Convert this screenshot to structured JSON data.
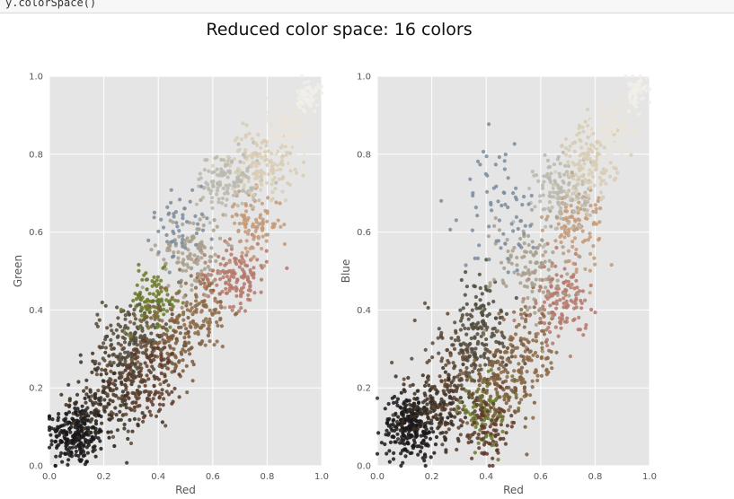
{
  "code_cell": {
    "text": "y.colorSpace()"
  },
  "figure_title": "Reduced color space: 16 colors",
  "palette": [
    "#1a1818",
    "#3a2e22",
    "#5d4733",
    "#4f4b3c",
    "#6b7a2a",
    "#7a5a3c",
    "#8b6a45",
    "#5f3a2a",
    "#b5786a",
    "#c49a78",
    "#a89f8c",
    "#bab8ae",
    "#d8ccb4",
    "#ebe5da",
    "#f2eee9",
    "#7a8c9c"
  ],
  "chart_data": [
    {
      "type": "scatter",
      "title": "",
      "xlabel": "Red",
      "ylabel": "Green",
      "xlim": [
        0.0,
        1.0
      ],
      "ylim": [
        0.0,
        1.0
      ],
      "xticks": [
        "0.0",
        "0.2",
        "0.4",
        "0.6",
        "0.8",
        "1.0"
      ],
      "yticks": [
        "0.0",
        "0.2",
        "0.4",
        "0.6",
        "0.8",
        "1.0"
      ],
      "grid": true,
      "clusters": [
        {
          "color": "#1a1818",
          "cx": 0.1,
          "cy": 0.08,
          "sx": 0.05,
          "sy": 0.04,
          "n": 260
        },
        {
          "color": "#3a2e22",
          "cx": 0.22,
          "cy": 0.18,
          "sx": 0.07,
          "sy": 0.06,
          "n": 170
        },
        {
          "color": "#5d4733",
          "cx": 0.3,
          "cy": 0.25,
          "sx": 0.07,
          "sy": 0.07,
          "n": 140
        },
        {
          "color": "#4f4b3c",
          "cx": 0.32,
          "cy": 0.32,
          "sx": 0.06,
          "sy": 0.06,
          "n": 130
        },
        {
          "color": "#6b7a2a",
          "cx": 0.38,
          "cy": 0.42,
          "sx": 0.05,
          "sy": 0.04,
          "n": 110
        },
        {
          "color": "#7a5a3c",
          "cx": 0.45,
          "cy": 0.32,
          "sx": 0.06,
          "sy": 0.05,
          "n": 120
        },
        {
          "color": "#8b6a45",
          "cx": 0.55,
          "cy": 0.4,
          "sx": 0.06,
          "sy": 0.05,
          "n": 110
        },
        {
          "color": "#5f3a2a",
          "cx": 0.38,
          "cy": 0.22,
          "sx": 0.06,
          "sy": 0.05,
          "n": 100
        },
        {
          "color": "#b5786a",
          "cx": 0.68,
          "cy": 0.49,
          "sx": 0.06,
          "sy": 0.04,
          "n": 150
        },
        {
          "color": "#c49a78",
          "cx": 0.75,
          "cy": 0.62,
          "sx": 0.05,
          "sy": 0.04,
          "n": 100
        },
        {
          "color": "#a89f8c",
          "cx": 0.52,
          "cy": 0.55,
          "sx": 0.06,
          "sy": 0.05,
          "n": 120
        },
        {
          "color": "#bab8ae",
          "cx": 0.66,
          "cy": 0.73,
          "sx": 0.06,
          "sy": 0.04,
          "n": 130
        },
        {
          "color": "#d8ccb4",
          "cx": 0.78,
          "cy": 0.78,
          "sx": 0.06,
          "sy": 0.04,
          "n": 140
        },
        {
          "color": "#ebe5da",
          "cx": 0.88,
          "cy": 0.87,
          "sx": 0.04,
          "sy": 0.04,
          "n": 120
        },
        {
          "color": "#f2eee9",
          "cx": 0.95,
          "cy": 0.95,
          "sx": 0.02,
          "sy": 0.02,
          "n": 60
        },
        {
          "color": "#7a8c9c",
          "cx": 0.48,
          "cy": 0.62,
          "sx": 0.05,
          "sy": 0.05,
          "n": 50
        }
      ]
    },
    {
      "type": "scatter",
      "title": "",
      "xlabel": "Red",
      "ylabel": "Blue",
      "xlim": [
        0.0,
        1.0
      ],
      "ylim": [
        0.0,
        1.0
      ],
      "xticks": [
        "0.0",
        "0.2",
        "0.4",
        "0.6",
        "0.8",
        "1.0"
      ],
      "yticks": [
        "0.0",
        "0.2",
        "0.4",
        "0.6",
        "0.8",
        "1.0"
      ],
      "grid": true,
      "clusters": [
        {
          "color": "#1a1818",
          "cx": 0.12,
          "cy": 0.1,
          "sx": 0.05,
          "sy": 0.04,
          "n": 260
        },
        {
          "color": "#3a2e22",
          "cx": 0.22,
          "cy": 0.15,
          "sx": 0.07,
          "sy": 0.05,
          "n": 170
        },
        {
          "color": "#5d4733",
          "cx": 0.3,
          "cy": 0.25,
          "sx": 0.08,
          "sy": 0.07,
          "n": 150
        },
        {
          "color": "#4f4b3c",
          "cx": 0.38,
          "cy": 0.35,
          "sx": 0.07,
          "sy": 0.07,
          "n": 140
        },
        {
          "color": "#6b7a2a",
          "cx": 0.4,
          "cy": 0.14,
          "sx": 0.05,
          "sy": 0.04,
          "n": 100
        },
        {
          "color": "#7a5a3c",
          "cx": 0.45,
          "cy": 0.2,
          "sx": 0.06,
          "sy": 0.05,
          "n": 120
        },
        {
          "color": "#8b6a45",
          "cx": 0.55,
          "cy": 0.28,
          "sx": 0.06,
          "sy": 0.06,
          "n": 120
        },
        {
          "color": "#5f3a2a",
          "cx": 0.4,
          "cy": 0.1,
          "sx": 0.06,
          "sy": 0.04,
          "n": 90
        },
        {
          "color": "#b5786a",
          "cx": 0.67,
          "cy": 0.42,
          "sx": 0.05,
          "sy": 0.05,
          "n": 140
        },
        {
          "color": "#c49a78",
          "cx": 0.73,
          "cy": 0.62,
          "sx": 0.05,
          "sy": 0.05,
          "n": 110
        },
        {
          "color": "#a89f8c",
          "cx": 0.56,
          "cy": 0.52,
          "sx": 0.07,
          "sy": 0.07,
          "n": 120
        },
        {
          "color": "#bab8ae",
          "cx": 0.68,
          "cy": 0.7,
          "sx": 0.05,
          "sy": 0.05,
          "n": 130
        },
        {
          "color": "#d8ccb4",
          "cx": 0.78,
          "cy": 0.78,
          "sx": 0.05,
          "sy": 0.05,
          "n": 140
        },
        {
          "color": "#ebe5da",
          "cx": 0.87,
          "cy": 0.87,
          "sx": 0.04,
          "sy": 0.04,
          "n": 120
        },
        {
          "color": "#f2eee9",
          "cx": 0.95,
          "cy": 0.96,
          "sx": 0.02,
          "sy": 0.02,
          "n": 60
        },
        {
          "color": "#7a8c9c",
          "cx": 0.45,
          "cy": 0.66,
          "sx": 0.07,
          "sy": 0.08,
          "n": 70
        }
      ]
    }
  ]
}
